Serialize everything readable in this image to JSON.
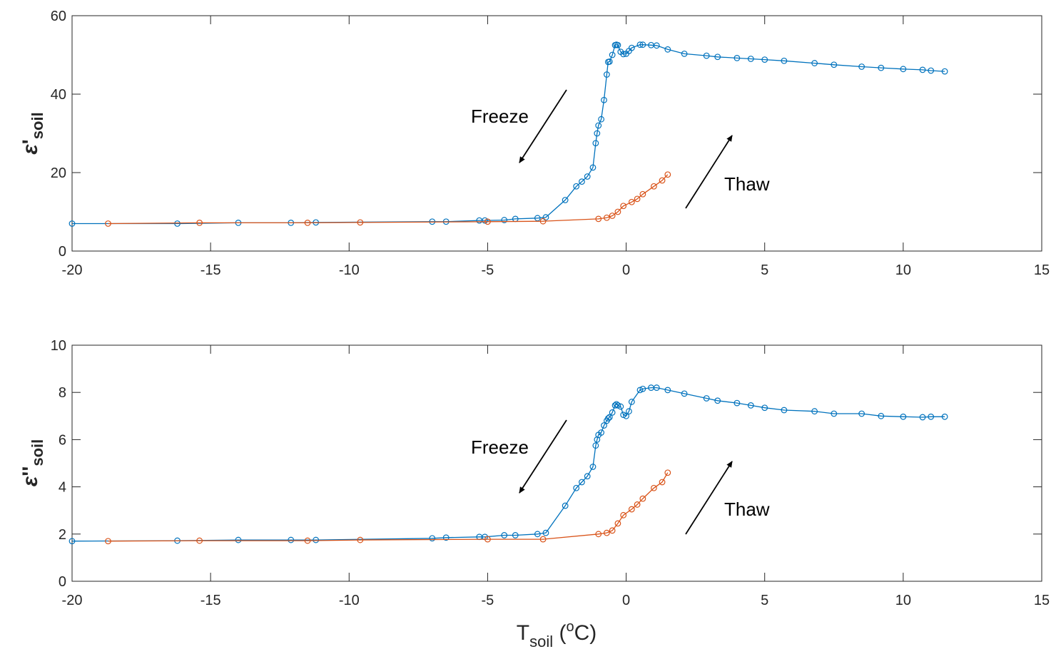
{
  "chart_data": [
    {
      "type": "line",
      "ylabel_main": "ε",
      "ylabel_prime": "'",
      "ylabel_sub": "soil",
      "xlabel_main": "",
      "xlim": [
        -20,
        15
      ],
      "ylim": [
        0,
        60
      ],
      "xticks": [
        "-20",
        "-15",
        "-10",
        "-5",
        "0",
        "5",
        "10",
        "15"
      ],
      "yticks": [
        "0",
        "20",
        "40",
        "60"
      ],
      "grid": false,
      "annotations": {
        "freeze": "Freeze",
        "thaw": "Thaw"
      },
      "series": [
        {
          "color": "#0072BD",
          "marker": "circle",
          "x": [
            -20,
            -16.2,
            -14,
            -12.1,
            -11.2,
            -7,
            -6.5,
            -5.3,
            -5.1,
            -4.4,
            -4,
            -3.2,
            -2.9,
            -2.2,
            -1.8,
            -1.6,
            -1.4,
            -1.2,
            -1.1,
            -1.05,
            -1.0,
            -0.9,
            -0.8,
            -0.7,
            -0.65,
            -0.6,
            -0.5,
            -0.4,
            -0.35,
            -0.3,
            -0.2,
            -0.1,
            0,
            0.1,
            0.2,
            0.5,
            0.6,
            0.9,
            1.1,
            1.5,
            2.1,
            2.9,
            3.3,
            4,
            4.5,
            5,
            5.7,
            6.8,
            7.5,
            8.5,
            9.2,
            10,
            10.7,
            11,
            11.5
          ],
          "y": [
            7,
            7,
            7.2,
            7.2,
            7.3,
            7.5,
            7.5,
            7.8,
            7.8,
            7.9,
            8.2,
            8.4,
            8.6,
            13,
            16.5,
            17.7,
            19,
            21.3,
            27.5,
            30,
            32,
            33.6,
            38.5,
            45,
            48.2,
            48.3,
            50,
            52.5,
            52.6,
            52.5,
            50.8,
            50.2,
            50.3,
            51,
            51.8,
            52.6,
            52.6,
            52.5,
            52.4,
            51.4,
            50.3,
            49.8,
            49.5,
            49.2,
            49,
            48.8,
            48.5,
            47.9,
            47.5,
            47,
            46.7,
            46.4,
            46.2,
            46,
            45.8
          ]
        },
        {
          "color": "#D95319",
          "marker": "circle",
          "x": [
            -18.7,
            -15.4,
            -11.5,
            -9.6,
            -5,
            -3,
            -1,
            -0.7,
            -0.5,
            -0.3,
            -0.1,
            0.2,
            0.4,
            0.6,
            1,
            1.3,
            1.5
          ],
          "y": [
            7,
            7.2,
            7.2,
            7.3,
            7.5,
            7.6,
            8.2,
            8.5,
            9,
            10,
            11.5,
            12.5,
            13.3,
            14.5,
            16.5,
            18,
            19.5
          ]
        }
      ]
    },
    {
      "type": "line",
      "ylabel_main": "ε",
      "ylabel_prime": "''",
      "ylabel_sub": "soil",
      "xlabel_main": "T",
      "xlabel_sub": "soil",
      "xlabel_open": " (",
      "xlabel_sup": "o",
      "xlabel_close": "C)",
      "xlim": [
        -20,
        15
      ],
      "ylim": [
        0,
        10
      ],
      "xticks": [
        "-20",
        "-15",
        "-10",
        "-5",
        "0",
        "5",
        "10",
        "15"
      ],
      "yticks": [
        "0",
        "2",
        "4",
        "6",
        "8",
        "10"
      ],
      "grid": false,
      "annotations": {
        "freeze": "Freeze",
        "thaw": "Thaw"
      },
      "series": [
        {
          "color": "#0072BD",
          "marker": "circle",
          "x": [
            -20,
            -16.2,
            -14,
            -12.1,
            -11.2,
            -7,
            -6.5,
            -5.3,
            -5.1,
            -4.4,
            -4,
            -3.2,
            -2.9,
            -2.2,
            -1.8,
            -1.6,
            -1.4,
            -1.2,
            -1.1,
            -1.05,
            -1.0,
            -0.9,
            -0.8,
            -0.7,
            -0.65,
            -0.6,
            -0.5,
            -0.4,
            -0.35,
            -0.3,
            -0.2,
            -0.1,
            0,
            0.1,
            0.2,
            0.5,
            0.6,
            0.9,
            1.1,
            1.5,
            2.1,
            2.9,
            3.3,
            4,
            4.5,
            5,
            5.7,
            6.8,
            7.5,
            8.5,
            9.2,
            10,
            10.7,
            11,
            11.5
          ],
          "y": [
            1.7,
            1.72,
            1.75,
            1.75,
            1.75,
            1.82,
            1.85,
            1.88,
            1.88,
            1.95,
            1.95,
            2.0,
            2.05,
            3.2,
            3.95,
            4.2,
            4.45,
            4.85,
            5.75,
            6.0,
            6.2,
            6.3,
            6.6,
            6.8,
            6.9,
            6.95,
            7.15,
            7.45,
            7.5,
            7.45,
            7.4,
            7.05,
            7.0,
            7.2,
            7.6,
            8.1,
            8.15,
            8.2,
            8.2,
            8.1,
            7.95,
            7.75,
            7.65,
            7.55,
            7.45,
            7.35,
            7.25,
            7.2,
            7.1,
            7.1,
            7.0,
            6.97,
            6.95,
            6.97,
            6.97
          ]
        },
        {
          "color": "#D95319",
          "marker": "circle",
          "x": [
            -18.7,
            -15.4,
            -11.5,
            -9.6,
            -5,
            -3,
            -1,
            -0.7,
            -0.5,
            -0.3,
            -0.1,
            0.2,
            0.4,
            0.6,
            1,
            1.3,
            1.5
          ],
          "y": [
            1.7,
            1.72,
            1.72,
            1.75,
            1.78,
            1.78,
            2.0,
            2.05,
            2.15,
            2.45,
            2.8,
            3.05,
            3.25,
            3.5,
            3.95,
            4.2,
            4.6
          ]
        }
      ]
    }
  ]
}
